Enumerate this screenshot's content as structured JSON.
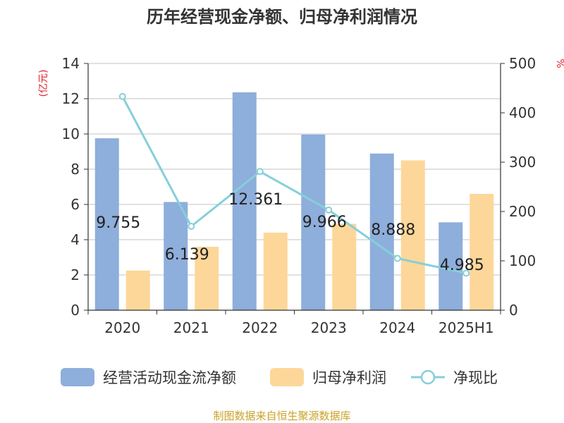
{
  "chart_data": {
    "type": "bar",
    "title": "历年经营现金净额、归母净利润情况",
    "y_left_label": "(亿元)",
    "y_right_label": "%",
    "categories": [
      "2020",
      "2021",
      "2022",
      "2023",
      "2024",
      "2025H1"
    ],
    "y_left_range": [
      0,
      14
    ],
    "y_left_ticks": [
      0,
      2,
      4,
      6,
      8,
      10,
      12,
      14
    ],
    "y_right_range": [
      0,
      500
    ],
    "y_right_ticks": [
      0,
      100,
      200,
      300,
      400,
      500
    ],
    "grid": true,
    "legend_position": "bottom",
    "series": [
      {
        "name": "经营活动现金流净额",
        "kind": "bar",
        "axis": "left",
        "color": "#8eaedb",
        "values": [
          9.755,
          6.139,
          12.361,
          9.966,
          8.888,
          4.985
        ],
        "labels": [
          "9.755",
          "6.139",
          "12.361",
          "9.966",
          "8.888",
          "4.985"
        ]
      },
      {
        "name": "归母净利润",
        "kind": "bar",
        "axis": "left",
        "color": "#fdd799",
        "values": [
          2.25,
          3.6,
          4.4,
          4.9,
          8.5,
          6.6
        ]
      },
      {
        "name": "净现比",
        "kind": "line",
        "axis": "right",
        "color": "#86cfd9",
        "values": [
          433,
          170,
          281,
          203,
          105,
          75
        ]
      }
    ]
  },
  "footer": {
    "source": "制图数据来自恒生聚源数据库"
  }
}
